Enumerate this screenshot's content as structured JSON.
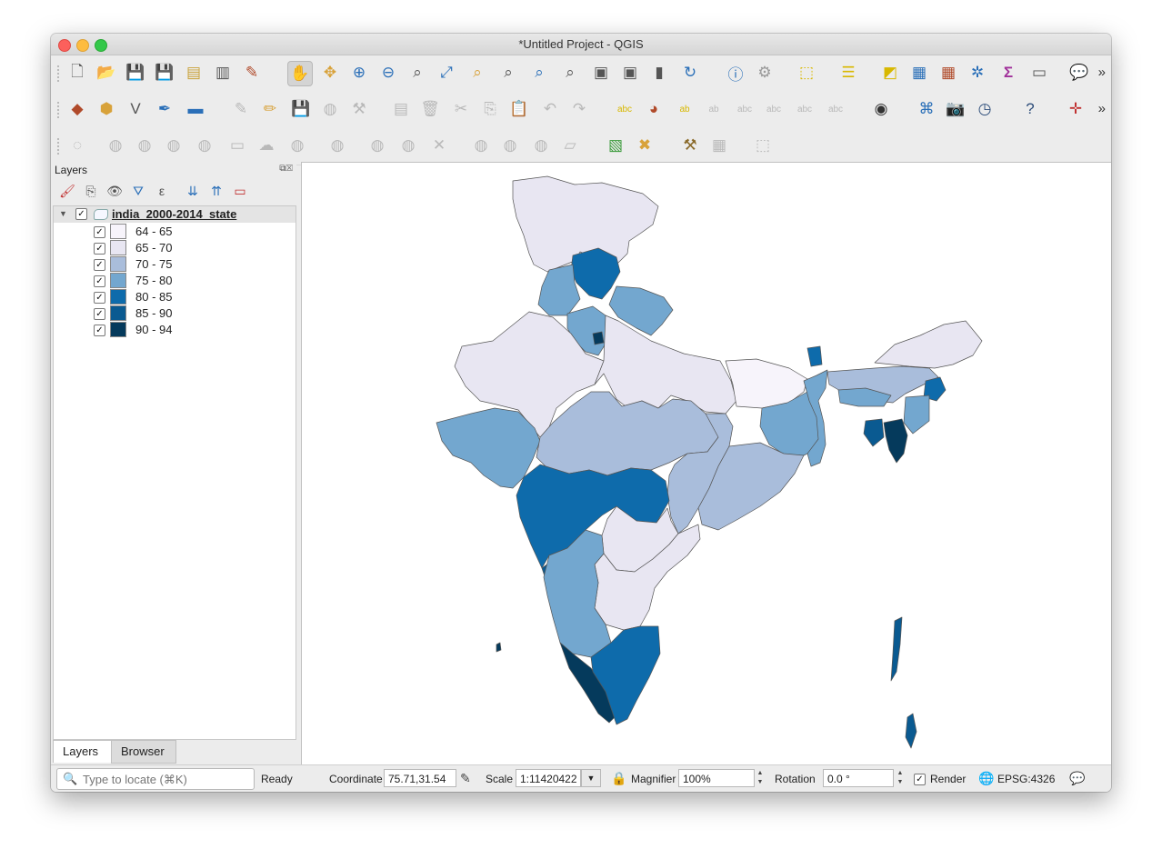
{
  "window": {
    "title": "*Untitled Project - QGIS"
  },
  "toolbars": {
    "row1": [
      "new-project-icon",
      "open-project-icon",
      "save-project-icon",
      "save-as-icon",
      "new-print-layout-icon",
      "layout-manager-icon",
      "style-manager-icon",
      "pan-map-icon",
      "pan-to-selection-icon",
      "zoom-in-icon",
      "zoom-out-icon",
      "zoom-native-icon",
      "zoom-full-icon",
      "zoom-to-selection-icon",
      "zoom-to-layer-icon",
      "zoom-last-icon",
      "zoom-next-icon",
      "new-bookmark-icon",
      "show-bookmarks-icon",
      "temporal-controller-icon",
      "refresh-icon",
      "identify-icon",
      "action-icon",
      "select-features-icon",
      "open-attribute-table-icon",
      "deselect-icon",
      "field-calculator-icon",
      "statistics-icon",
      "toolbox-icon",
      "sigma-icon",
      "measure-icon",
      "map-tips-icon"
    ],
    "row2": [
      "data-source-manager-icon",
      "new-geopackage-icon",
      "digitize-vertex-icon",
      "digitize-pencil-icon",
      "new-virtual-layer-icon",
      "current-edits-icon",
      "toggle-editing-icon",
      "save-edits-icon",
      "add-feature-icon",
      "vertex-tool-icon",
      "modify-attributes-icon",
      "delete-selected-icon",
      "cut-features-icon",
      "copy-features-icon",
      "paste-features-icon",
      "undo-icon",
      "redo-icon",
      "label-toolbar-icon",
      "diagram-icon",
      "highlight-pinned-labels-icon",
      "pin-labels-icon",
      "show-hide-labels-icon",
      "move-label-icon",
      "rotate-label-icon",
      "change-label-icon",
      "metasearch-icon",
      "python-console-icon",
      "take-snapshot-icon",
      "temporal-icon",
      "help-icon",
      "cad-digitize-icon"
    ],
    "row3": [
      "add-ring-icon",
      "add-part-icon",
      "fill-ring-icon",
      "delete-ring-icon",
      "delete-part-icon",
      "reshape-icon",
      "offset-curve-icon",
      "split-features-icon",
      "split-parts-icon",
      "merge-features-icon",
      "merge-attributes-icon",
      "rotate-point-icon",
      "simplify-icon",
      "reverse-line-icon",
      "trim-extend-icon",
      "georeferencer-icon",
      "georeferencer-settings-icon",
      "tools-icon",
      "clip-icon",
      "select-by-location-icon"
    ]
  },
  "layers_panel": {
    "title": "Layers",
    "tools": [
      "open-styling-icon",
      "add-group-icon",
      "manage-visibility-icon",
      "filter-legend-icon",
      "filter-expression-icon",
      "expand-all-icon",
      "collapse-all-icon",
      "remove-layer-icon"
    ],
    "layer": {
      "name": "india_2000-2014_state",
      "checked": true
    },
    "legend": [
      {
        "label": "64 - 65",
        "color": "#f7f4fb"
      },
      {
        "label": "65 - 70",
        "color": "#e8e6f2"
      },
      {
        "label": "70 - 75",
        "color": "#a9bddb"
      },
      {
        "label": "75 - 80",
        "color": "#73a7cf"
      },
      {
        "label": "80 - 85",
        "color": "#0e6bab"
      },
      {
        "label": "85 - 90",
        "color": "#0a5a91"
      },
      {
        "label": "90 - 94",
        "color": "#053a5c"
      }
    ],
    "tabs": [
      "Layers",
      "Browser"
    ]
  },
  "statusbar": {
    "locator_placeholder": "Type to locate (⌘K)",
    "status": "Ready",
    "coordinate_label": "Coordinate",
    "coordinate_value": "75.71,31.54",
    "scale_label": "Scale",
    "scale_value": "1:11420422",
    "magnifier_label": "Magnifier",
    "magnifier_value": "100%",
    "rotation_label": "Rotation",
    "rotation_value": "0.0 °",
    "render_label": "Render",
    "render_checked": true,
    "crs": "EPSG:4326"
  }
}
